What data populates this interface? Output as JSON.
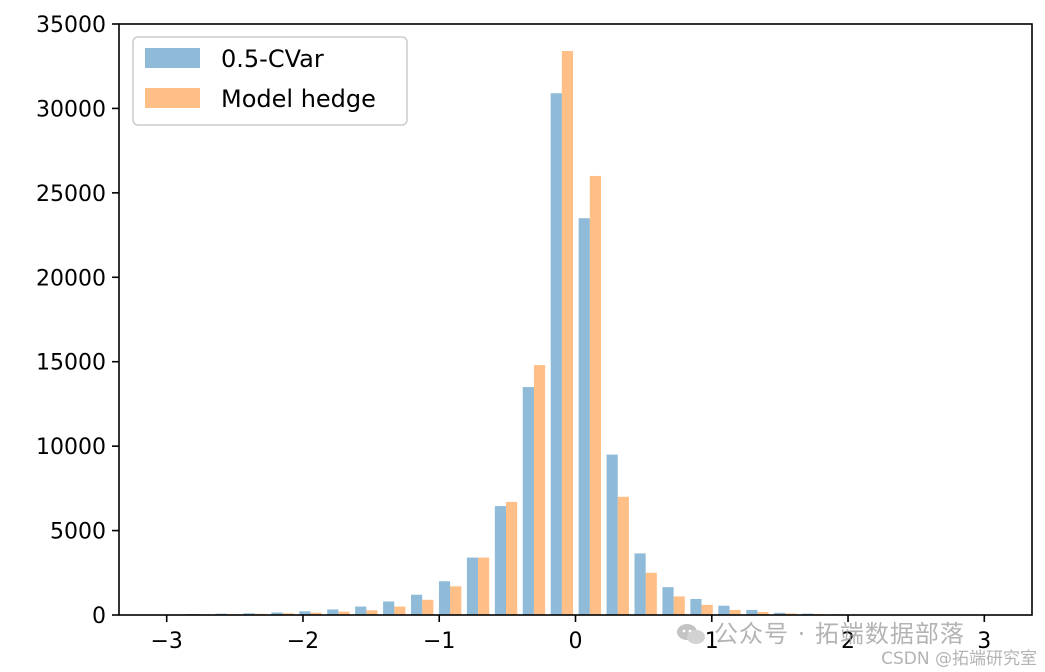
{
  "chart_data": {
    "type": "bar",
    "title": "",
    "xlabel": "",
    "ylabel": "",
    "xlim": [
      -3.35,
      3.35
    ],
    "ylim": [
      0,
      35000
    ],
    "grid": false,
    "legend_position": "top-left",
    "x_ticks": [
      {
        "value": -3,
        "label": "−3"
      },
      {
        "value": -2,
        "label": "−2"
      },
      {
        "value": -1,
        "label": "−1"
      },
      {
        "value": 0,
        "label": "0"
      },
      {
        "value": 1,
        "label": "1"
      },
      {
        "value": 2,
        "label": "2"
      },
      {
        "value": 3,
        "label": "3"
      }
    ],
    "y_ticks": [
      {
        "value": 0,
        "label": "0"
      },
      {
        "value": 5000,
        "label": "5000"
      },
      {
        "value": 10000,
        "label": "10000"
      },
      {
        "value": 15000,
        "label": "15000"
      },
      {
        "value": 20000,
        "label": "20000"
      },
      {
        "value": 25000,
        "label": "25000"
      },
      {
        "value": 30000,
        "label": "30000"
      },
      {
        "value": 35000,
        "label": "35000"
      }
    ],
    "bin_width": 0.205,
    "bin_centers": [
      -2.97,
      -2.765,
      -2.56,
      -2.355,
      -2.15,
      -1.945,
      -1.74,
      -1.535,
      -1.33,
      -1.125,
      -0.92,
      -0.715,
      -0.51,
      -0.305,
      -0.1,
      0.105,
      0.31,
      0.515,
      0.72,
      0.925,
      1.13,
      1.335,
      1.54,
      1.745,
      1.95,
      2.155,
      2.36,
      2.565,
      2.77,
      2.975
    ],
    "series": [
      {
        "name": "0.5-CVar",
        "color": "#1f77b4",
        "values": [
          20,
          60,
          80,
          100,
          150,
          220,
          330,
          500,
          800,
          1200,
          2000,
          3400,
          6450,
          13500,
          30900,
          23500,
          9500,
          3650,
          1650,
          950,
          550,
          300,
          130,
          80,
          40,
          25,
          15,
          10,
          5,
          3
        ]
      },
      {
        "name": "Model hedge",
        "color": "#ff7f0e",
        "values": [
          10,
          40,
          50,
          70,
          100,
          140,
          200,
          280,
          500,
          900,
          1700,
          3400,
          6700,
          14800,
          33400,
          26000,
          7000,
          2500,
          1100,
          600,
          300,
          180,
          90,
          50,
          25,
          15,
          10,
          5,
          3,
          2
        ]
      }
    ]
  },
  "watermark": {
    "main": "公众号 · 拓端数据部落",
    "sub": "CSDN @拓端研究室",
    "icon": "wechat-icon"
  }
}
